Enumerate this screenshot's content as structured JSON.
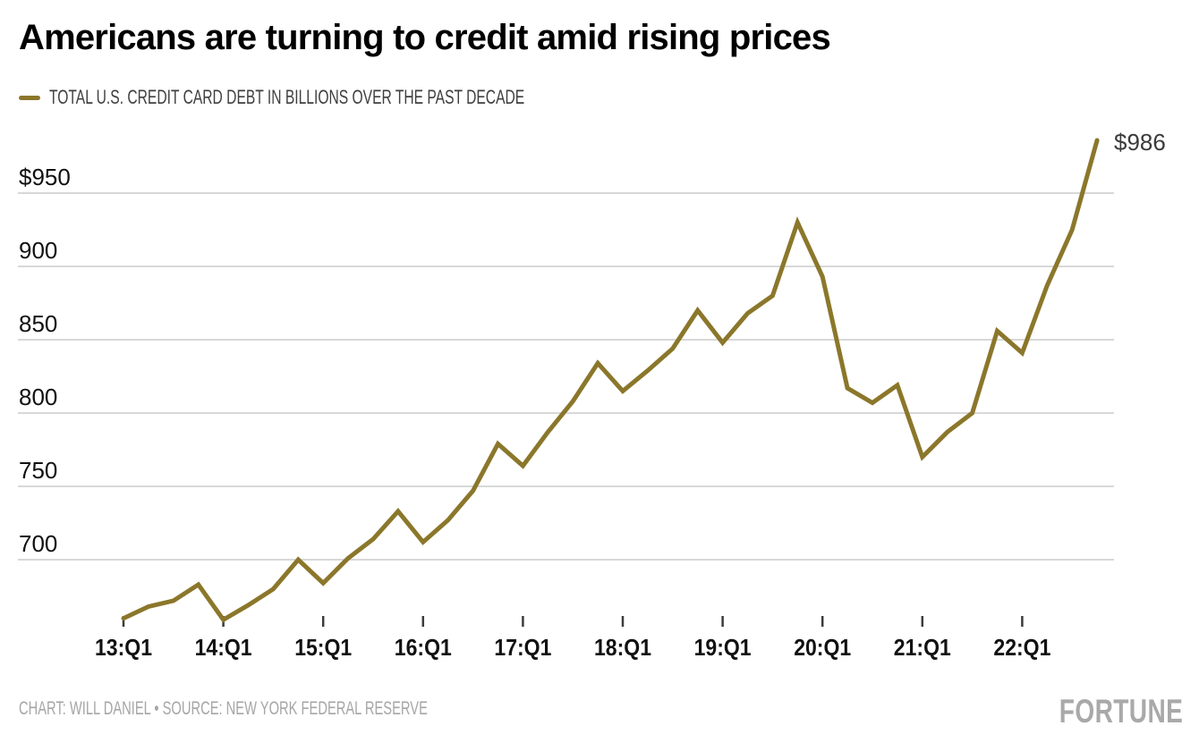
{
  "title": "Americans are turning to credit amid rising prices",
  "legend": {
    "label": "TOTAL U.S. CREDIT CARD DEBT IN BILLIONS OVER THE PAST DECADE",
    "swatch_color": "#8b772b"
  },
  "annotation": {
    "end_label": "$986"
  },
  "footer": {
    "credit": "CHART: WILL DANIEL • SOURCE: NEW YORK FEDERAL RESERVE",
    "brand": "FORTUNE"
  },
  "chart_data": {
    "type": "line",
    "title": "Americans are turning to credit amid rising prices",
    "series": [
      {
        "name": "Total U.S. credit card debt in billions",
        "values": [
          660,
          668,
          672,
          683,
          659,
          669,
          680,
          700,
          684,
          701,
          714,
          733,
          712,
          727,
          747,
          779,
          764,
          787,
          808,
          834,
          815,
          829,
          844,
          870,
          848,
          868,
          880,
          930,
          893,
          817,
          807,
          819,
          770,
          787,
          800,
          856,
          841,
          887,
          925,
          986
        ]
      }
    ],
    "x": [
      "13:Q1",
      "13:Q2",
      "13:Q3",
      "13:Q4",
      "14:Q1",
      "14:Q2",
      "14:Q3",
      "14:Q4",
      "15:Q1",
      "15:Q2",
      "15:Q3",
      "15:Q4",
      "16:Q1",
      "16:Q2",
      "16:Q3",
      "16:Q4",
      "17:Q1",
      "17:Q2",
      "17:Q3",
      "17:Q4",
      "18:Q1",
      "18:Q2",
      "18:Q3",
      "18:Q4",
      "19:Q1",
      "19:Q2",
      "19:Q3",
      "19:Q4",
      "20:Q1",
      "20:Q2",
      "20:Q3",
      "20:Q4",
      "21:Q1",
      "21:Q2",
      "21:Q3",
      "21:Q4",
      "22:Q1",
      "22:Q2",
      "22:Q3",
      "22:Q4"
    ],
    "x_tick_labels": [
      "13:Q1",
      "14:Q1",
      "15:Q1",
      "16:Q1",
      "17:Q1",
      "18:Q1",
      "19:Q1",
      "20:Q1",
      "21:Q1",
      "22:Q1"
    ],
    "y_ticks": [
      {
        "value": 950,
        "label": "$950"
      },
      {
        "value": 900,
        "label": "900"
      },
      {
        "value": 850,
        "label": "850"
      },
      {
        "value": 800,
        "label": "800"
      },
      {
        "value": 750,
        "label": "750"
      },
      {
        "value": 700,
        "label": "700"
      }
    ],
    "ylim": [
      645,
      1000
    ],
    "xlabel": "",
    "ylabel": "",
    "grid": true,
    "legend_position": "top-left",
    "line_color": "#8b772b",
    "grid_color": "#d8d8d8",
    "tick_color": "#3c3c3c",
    "end_label": "$986",
    "unit": "$ billions"
  }
}
